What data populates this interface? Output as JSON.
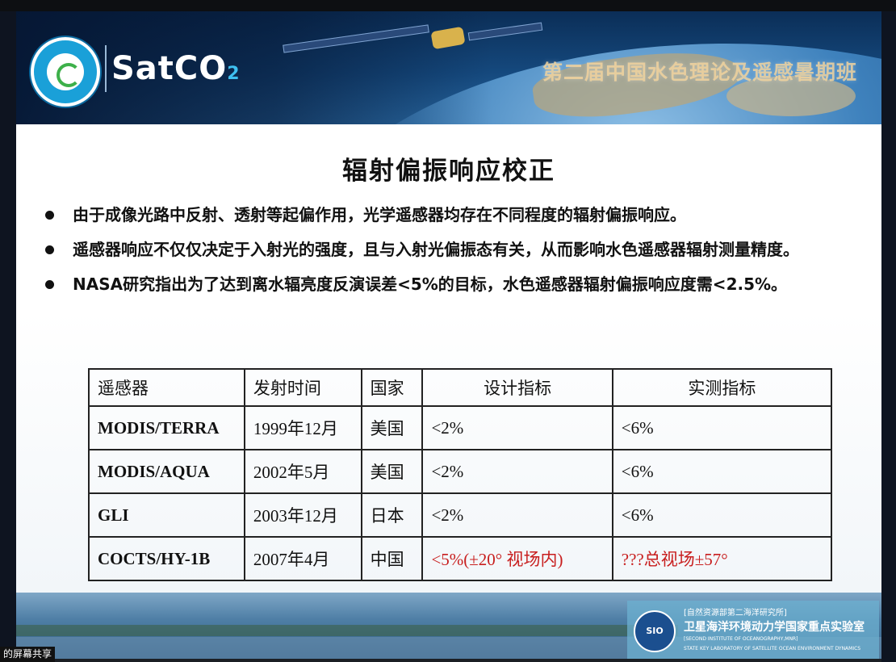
{
  "header": {
    "logo_text": "SatCO",
    "logo_subscript": "2",
    "event_title": "第二届中国水色理论及遥感暑期班"
  },
  "slide": {
    "title": "辐射偏振响应校正",
    "bullets": [
      "由于成像光路中反射、透射等起偏作用，光学遥感器均存在不同程度的辐射偏振响应。",
      "遥感器响应不仅仅决定于入射光的强度，且与入射光偏振态有关，从而影响水色遥感器辐射测量精度。",
      "NASA研究指出为了达到离水辐亮度反演误差<5%的目标，水色遥感器辐射偏振响应度需<2.5%。"
    ],
    "table": {
      "headers": [
        "遥感器",
        "发射时间",
        "国家",
        "设计指标",
        "实测指标"
      ],
      "rows": [
        {
          "sensor": "MODIS/TERRA",
          "launch": "1999年12月",
          "country": "美国",
          "design": "<2%",
          "measured": "<6%"
        },
        {
          "sensor": "MODIS/AQUA",
          "launch": "2002年5月",
          "country": "美国",
          "design": "<2%",
          "measured": "<6%"
        },
        {
          "sensor": "GLI",
          "launch": "2003年12月",
          "country": "日本",
          "design": "<2%",
          "measured": "<6%"
        },
        {
          "sensor": "COCTS/HY-1B",
          "launch": "2007年4月",
          "country": "中国",
          "design": "<5%(±20° 视场内)",
          "measured": "???总视场±57°"
        }
      ]
    }
  },
  "footer": {
    "institute_logo": "SIO",
    "line1": "[自然资源部第二海洋研究所]",
    "line2": "卫星海洋环境动力学国家重点实验室",
    "line3": "[SECOND INSTITUTE OF OCEANOGRAPHY,MNR]",
    "line4": "STATE KEY LABORATORY OF SATELLITE OCEAN ENVIRONMENT DYNAMICS"
  },
  "share_tag": "的屏幕共享",
  "colors": {
    "highlight_red": "#c81e1e",
    "banner_blue": "#15497e"
  }
}
